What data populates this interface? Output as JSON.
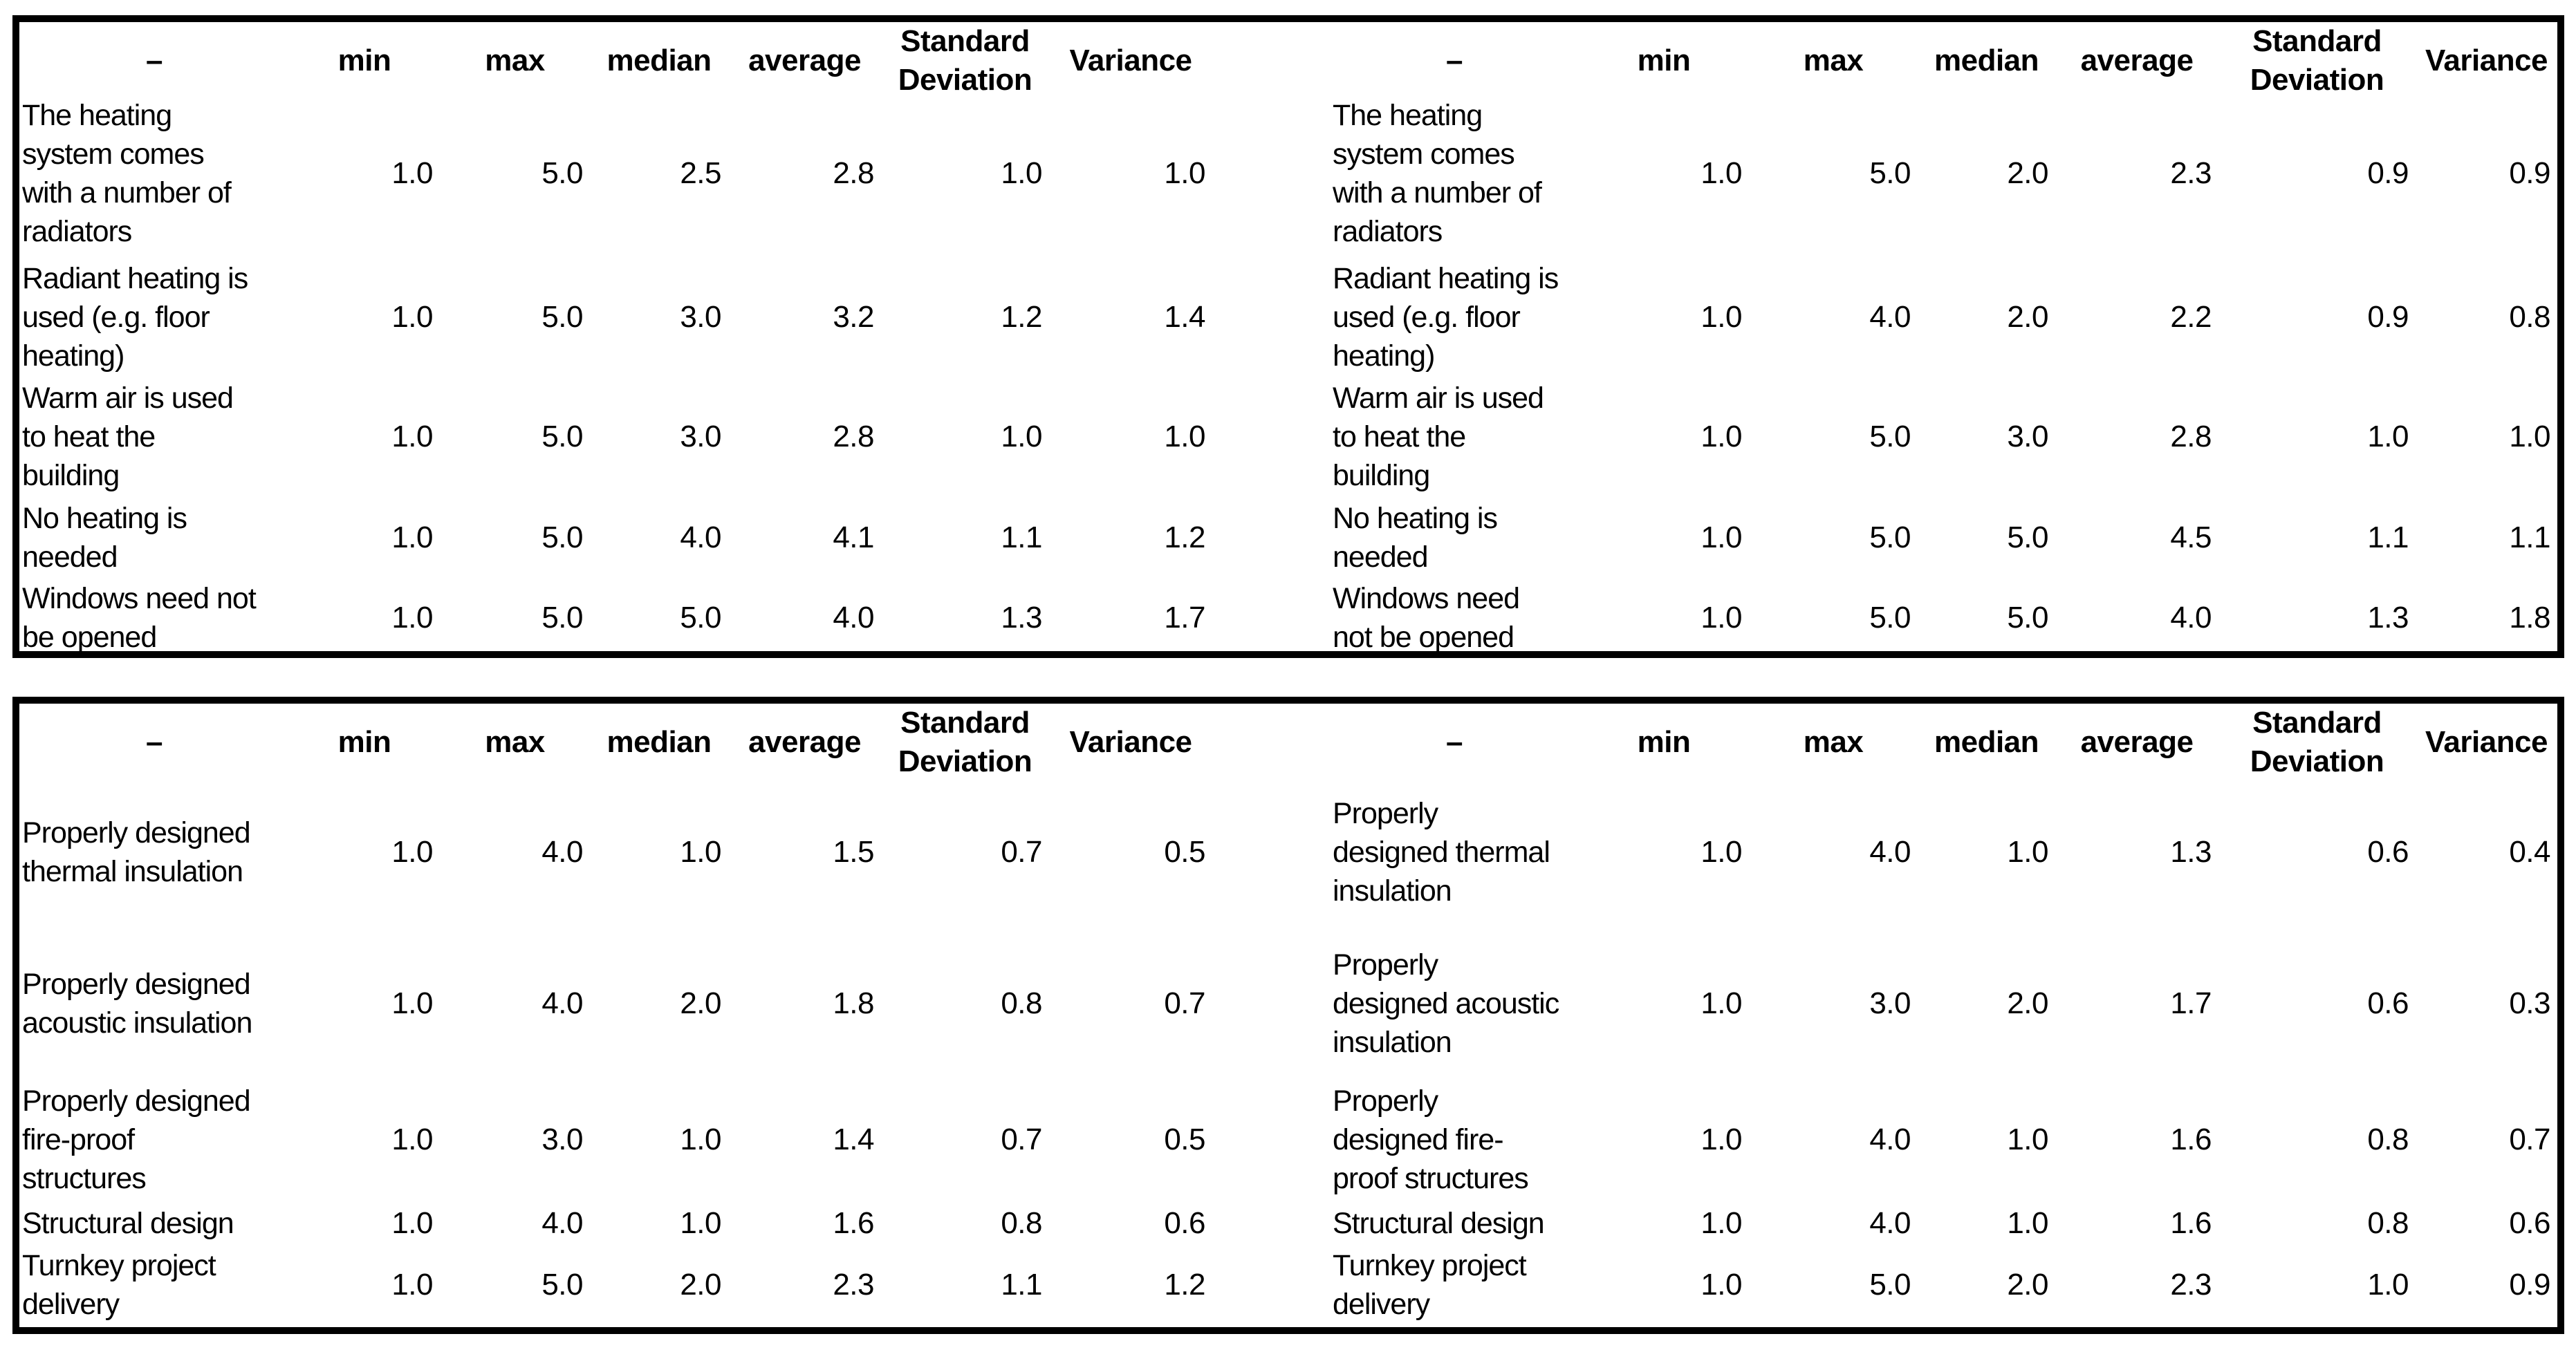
{
  "page": {
    "background_color": "#ffffff",
    "text_color": "#000000",
    "border_color": "#000000"
  },
  "blocks": [
    {
      "title": "heating-statistics",
      "left_table": {
        "headers": [
          "–",
          "min",
          "max",
          "median",
          "average",
          "Standard Deviation",
          "Variance"
        ],
        "rows": [
          {
            "label": "The heating\nsystem comes\nwith a number of\nradiators",
            "values": [
              "1.0",
              "5.0",
              "2.5",
              "2.8",
              "1.0",
              "1.0"
            ]
          },
          {
            "label": "Radiant heating is\nused (e.g. floor\nheating)",
            "values": [
              "1.0",
              "5.0",
              "3.0",
              "3.2",
              "1.2",
              "1.4"
            ]
          },
          {
            "label": "Warm air is used\nto heat the\nbuilding",
            "values": [
              "1.0",
              "5.0",
              "3.0",
              "2.8",
              "1.0",
              "1.0"
            ]
          },
          {
            "label": "No heating is\nneeded",
            "values": [
              "1.0",
              "5.0",
              "4.0",
              "4.1",
              "1.1",
              "1.2"
            ]
          },
          {
            "label": "Windows need not\nbe opened",
            "values": [
              "1.0",
              "5.0",
              "5.0",
              "4.0",
              "1.3",
              "1.7"
            ]
          }
        ]
      },
      "right_table": {
        "headers": [
          "–",
          "min",
          "max",
          "median",
          "average",
          "Standard Deviation",
          "Variance"
        ],
        "rows": [
          {
            "label": "The heating\nsystem comes\nwith a number of\nradiators",
            "values": [
              "1.0",
              "5.0",
              "2.0",
              "2.3",
              "0.9",
              "0.9"
            ]
          },
          {
            "label": "Radiant heating is\nused (e.g. floor\nheating)",
            "values": [
              "1.0",
              "4.0",
              "2.0",
              "2.2",
              "0.9",
              "0.8"
            ]
          },
          {
            "label": "Warm air is used\nto heat the\nbuilding",
            "values": [
              "1.0",
              "5.0",
              "3.0",
              "2.8",
              "1.0",
              "1.0"
            ]
          },
          {
            "label": "No heating is\nneeded",
            "values": [
              "1.0",
              "5.0",
              "5.0",
              "4.5",
              "1.1",
              "1.1"
            ]
          },
          {
            "label": "Windows need\nnot be opened",
            "values": [
              "1.0",
              "5.0",
              "5.0",
              "4.0",
              "1.3",
              "1.8"
            ]
          }
        ]
      }
    },
    {
      "title": "design-statistics",
      "left_table": {
        "headers": [
          "–",
          "min",
          "max",
          "median",
          "average",
          "Standard Deviation",
          "Variance"
        ],
        "rows": [
          {
            "label": "Properly designed\nthermal insulation",
            "values": [
              "1.0",
              "4.0",
              "1.0",
              "1.5",
              "0.7",
              "0.5"
            ]
          },
          {
            "label": "Properly designed\nacoustic insulation",
            "values": [
              "1.0",
              "4.0",
              "2.0",
              "1.8",
              "0.8",
              "0.7"
            ]
          },
          {
            "label": "Properly designed\nfire-proof\nstructures",
            "values": [
              "1.0",
              "3.0",
              "1.0",
              "1.4",
              "0.7",
              "0.5"
            ]
          },
          {
            "label": "Structural design",
            "values": [
              "1.0",
              "4.0",
              "1.0",
              "1.6",
              "0.8",
              "0.6"
            ]
          },
          {
            "label": "Turnkey project\ndelivery",
            "values": [
              "1.0",
              "5.0",
              "2.0",
              "2.3",
              "1.1",
              "1.2"
            ]
          }
        ]
      },
      "right_table": {
        "headers": [
          "–",
          "min",
          "max",
          "median",
          "average",
          "Standard Deviation",
          "Variance"
        ],
        "rows": [
          {
            "label": "Properly\ndesigned thermal\ninsulation",
            "values": [
              "1.0",
              "4.0",
              "1.0",
              "1.3",
              "0.6",
              "0.4"
            ]
          },
          {
            "label": "Properly\ndesigned acoustic\ninsulation",
            "values": [
              "1.0",
              "3.0",
              "2.0",
              "1.7",
              "0.6",
              "0.3"
            ]
          },
          {
            "label": "Properly\ndesigned fire-\nproof structures",
            "values": [
              "1.0",
              "4.0",
              "1.0",
              "1.6",
              "0.8",
              "0.7"
            ]
          },
          {
            "label": "Structural design",
            "values": [
              "1.0",
              "4.0",
              "1.0",
              "1.6",
              "0.8",
              "0.6"
            ]
          },
          {
            "label": "Turnkey project\ndelivery",
            "values": [
              "1.0",
              "5.0",
              "2.0",
              "2.3",
              "1.0",
              "0.9"
            ]
          }
        ]
      }
    }
  ]
}
